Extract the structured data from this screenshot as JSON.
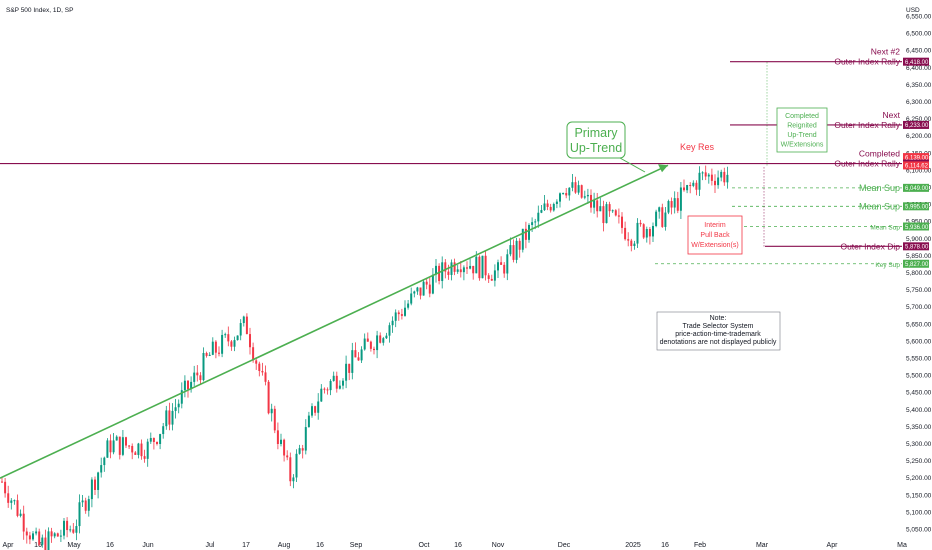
{
  "header": {
    "title": "S&P 500 Index, 1D, SP",
    "currency": "USD"
  },
  "chart_data": {
    "type": "candlestick",
    "title": "S&P 500 Index, 1D, SP",
    "ylim": [
      5025,
      6575
    ],
    "y_ticks": [
      "6,550.00",
      "6,500.00",
      "6,450.00",
      "6,400.00",
      "6,350.00",
      "6,300.00",
      "6,250.00",
      "6,200.00",
      "6,150.00",
      "6,100.00",
      "6,050.00",
      "6,000.00",
      "5,950.00",
      "5,900.00",
      "5,850.00",
      "5,800.00",
      "5,750.00",
      "5,700.00",
      "5,650.00",
      "5,600.00",
      "5,550.00",
      "5,500.00",
      "5,450.00",
      "5,400.00",
      "5,350.00",
      "5,300.00",
      "5,250.00",
      "5,200.00",
      "5,150.00",
      "5,100.00",
      "5,050.00"
    ],
    "x_ticks": [
      "Apr",
      "16",
      "May",
      "16",
      "Jun",
      "Jul",
      "17",
      "Aug",
      "16",
      "Sep",
      "Oct",
      "16",
      "Nov",
      "Dec",
      "2025",
      "16",
      "Feb",
      "Mar",
      "Apr",
      "Ma"
    ],
    "price_path": [
      [
        "Apr",
        5190
      ],
      [
        "16",
        5000
      ],
      [
        "May",
        5060
      ],
      [
        "16",
        5300
      ],
      [
        "Jun",
        5290
      ],
      [
        "Jul",
        5560
      ],
      [
        "17",
        5650
      ],
      [
        "Aug",
        5200
      ],
      [
        "16",
        5450
      ],
      [
        "Sep",
        5550
      ],
      [
        "Oct",
        5760
      ],
      [
        "16",
        5840
      ],
      [
        "Nov",
        5800
      ],
      [
        "Dec",
        6060
      ],
      [
        "2025",
        5910
      ],
      [
        "16",
        5970
      ],
      [
        "Feb",
        6080
      ],
      [
        "Mar",
        6090
      ]
    ],
    "annotations": {
      "primary_trend": "Primary\nUp-Trend",
      "key_res": "Key Res",
      "interim": "Interim\nPull Back\nW/Extension(s)",
      "completed_reignited": "Completed\nReignited\nUp-Trend\nW/Extensions",
      "note": "Note:\nTrade Selector System\nprice-action-time-trademark\ndenotations are not displayed publicly"
    },
    "levels": [
      {
        "name": "Next #2\nOuter Index Rally",
        "value": "6,418.00",
        "y": 6418,
        "color": "#880e4f",
        "style": "solid"
      },
      {
        "name": "Next\nOuter Index Rally",
        "value": "6,233.00",
        "y": 6233,
        "color": "#880e4f",
        "style": "solid"
      },
      {
        "name": "",
        "value": "6,139.00",
        "y": 6139,
        "color": "#f23645",
        "style": "none"
      },
      {
        "name": "Completed\nOuter Index Rally",
        "value": "6,120.00",
        "y": 6120,
        "color": "#880e4f",
        "style": "solid"
      },
      {
        "name": "",
        "value": "6,114.62",
        "y": 6114.62,
        "color": "#f23645",
        "style": "none"
      },
      {
        "name": "Mean Sup",
        "value": "6,049.00",
        "y": 6049,
        "color": "#4caf50",
        "style": "dashed"
      },
      {
        "name": "Mean Sup",
        "value": "5,995.00",
        "y": 5995,
        "color": "#4caf50",
        "style": "dashed"
      },
      {
        "name": "Mean Sup",
        "value": "5,936.00",
        "y": 5936,
        "color": "#4caf50",
        "style": "dashed"
      },
      {
        "name": "Outer Index Dip",
        "value": "5,878.00",
        "y": 5878,
        "color": "#880e4f",
        "style": "solid"
      },
      {
        "name": "Key Sup",
        "value": "5,827.00",
        "y": 5827,
        "color": "#4caf50",
        "style": "dashed"
      }
    ],
    "colors": {
      "up": "#089981",
      "down": "#f23645",
      "trend": "#4caf50",
      "resistance": "#880e4f",
      "support": "#4caf50"
    }
  }
}
